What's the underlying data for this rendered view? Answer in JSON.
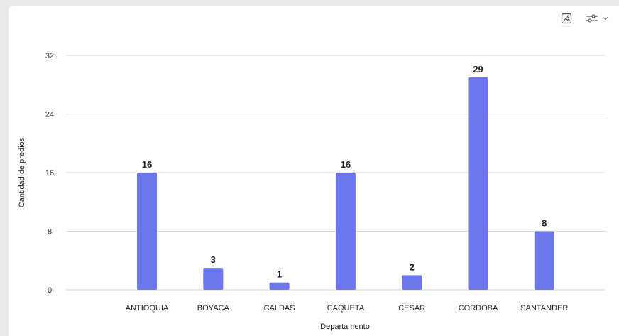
{
  "toolbar": {
    "image_icon": "image-icon",
    "filter_icon": "sliders-icon",
    "chevron_icon": "chevron-down-icon"
  },
  "chart_data": {
    "type": "bar",
    "categories": [
      "ANTIOQUIA",
      "BOYACA",
      "CALDAS",
      "CAQUETA",
      "CESAR",
      "CORDOBA",
      "SANTANDER"
    ],
    "values": [
      16,
      3,
      1,
      16,
      2,
      29,
      8
    ],
    "xlabel": "Departamento",
    "ylabel": "Cantidad de predios",
    "ylim": [
      0,
      32
    ],
    "yticks": [
      0,
      8,
      16,
      24,
      32
    ],
    "grid": true,
    "bar_color": "#6e76ec",
    "data_labels": true
  }
}
